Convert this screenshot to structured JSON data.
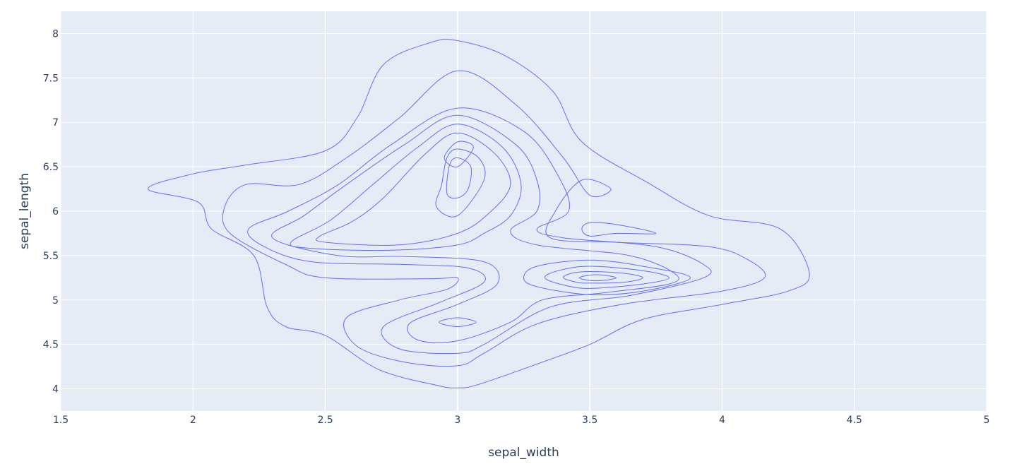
{
  "chart_data": {
    "type": "contour",
    "xlabel": "sepal_width",
    "ylabel": "sepal_length",
    "xlim": [
      1.5,
      5
    ],
    "ylim": [
      3.75,
      8.25
    ],
    "xticks": [
      1.5,
      2,
      2.5,
      3,
      3.5,
      4,
      4.5,
      5
    ],
    "xtick_labels": [
      "1.5",
      "2",
      "2.5",
      "3",
      "3.5",
      "4",
      "4.5",
      "5"
    ],
    "yticks": [
      4,
      4.5,
      5,
      5.5,
      6,
      6.5,
      7,
      7.5,
      8
    ],
    "ytick_labels": [
      "4",
      "4.5",
      "5",
      "5.5",
      "6",
      "6.5",
      "7",
      "7.5",
      "8"
    ],
    "grid": true,
    "plot_background": "#e5ecf6",
    "line_color": "#636efa",
    "series": [
      {
        "level": 1,
        "points": [
          [
            1.83,
            6.25
          ],
          [
            2.0,
            6.42
          ],
          [
            2.2,
            6.52
          ],
          [
            2.5,
            6.68
          ],
          [
            2.62,
            7.05
          ],
          [
            2.72,
            7.65
          ],
          [
            2.9,
            7.9
          ],
          [
            3.0,
            7.92
          ],
          [
            3.18,
            7.75
          ],
          [
            3.36,
            7.35
          ],
          [
            3.47,
            6.78
          ],
          [
            3.72,
            6.32
          ],
          [
            3.95,
            5.95
          ],
          [
            4.22,
            5.8
          ],
          [
            4.33,
            5.3
          ],
          [
            4.25,
            5.1
          ],
          [
            4.0,
            4.95
          ],
          [
            3.7,
            4.78
          ],
          [
            3.5,
            4.5
          ],
          [
            3.32,
            4.3
          ],
          [
            3.08,
            4.05
          ],
          [
            3.0,
            4.01
          ],
          [
            2.92,
            4.04
          ],
          [
            2.7,
            4.22
          ],
          [
            2.5,
            4.6
          ],
          [
            2.35,
            4.7
          ],
          [
            2.28,
            4.92
          ],
          [
            2.23,
            5.5
          ],
          [
            2.07,
            5.8
          ],
          [
            2.02,
            6.1
          ],
          [
            1.83,
            6.25
          ]
        ]
      },
      {
        "level": 2,
        "points": [
          [
            2.12,
            6.05
          ],
          [
            2.2,
            6.3
          ],
          [
            2.4,
            6.3
          ],
          [
            2.58,
            6.6
          ],
          [
            2.78,
            7.05
          ],
          [
            3.0,
            7.58
          ],
          [
            3.22,
            7.2
          ],
          [
            3.4,
            6.6
          ],
          [
            3.5,
            6.18
          ],
          [
            3.58,
            6.25
          ],
          [
            3.47,
            6.35
          ],
          [
            3.37,
            6.0
          ],
          [
            3.35,
            5.7
          ],
          [
            3.6,
            5.65
          ],
          [
            3.95,
            5.6
          ],
          [
            4.1,
            5.45
          ],
          [
            4.16,
            5.25
          ],
          [
            4.0,
            5.1
          ],
          [
            3.62,
            4.95
          ],
          [
            3.3,
            4.73
          ],
          [
            3.1,
            4.4
          ],
          [
            3.0,
            4.26
          ],
          [
            2.8,
            4.3
          ],
          [
            2.62,
            4.48
          ],
          [
            2.58,
            4.8
          ],
          [
            2.78,
            5.0
          ],
          [
            2.96,
            5.12
          ],
          [
            3.0,
            5.25
          ],
          [
            2.9,
            5.24
          ],
          [
            2.5,
            5.25
          ],
          [
            2.35,
            5.4
          ],
          [
            2.14,
            5.75
          ],
          [
            2.12,
            6.05
          ]
        ]
      },
      {
        "level": 3,
        "points": [
          [
            2.21,
            5.8
          ],
          [
            2.36,
            6.0
          ],
          [
            2.55,
            6.3
          ],
          [
            2.75,
            6.75
          ],
          [
            3.0,
            7.16
          ],
          [
            3.25,
            6.9
          ],
          [
            3.38,
            6.4
          ],
          [
            3.42,
            6.0
          ],
          [
            3.3,
            5.8
          ],
          [
            3.4,
            5.7
          ],
          [
            3.75,
            5.6
          ],
          [
            3.93,
            5.4
          ],
          [
            3.93,
            5.25
          ],
          [
            3.65,
            5.05
          ],
          [
            3.35,
            4.92
          ],
          [
            3.1,
            4.5
          ],
          [
            3.0,
            4.4
          ],
          [
            2.78,
            4.45
          ],
          [
            2.72,
            4.7
          ],
          [
            2.93,
            4.97
          ],
          [
            3.1,
            5.2
          ],
          [
            3.04,
            5.36
          ],
          [
            2.8,
            5.4
          ],
          [
            2.45,
            5.43
          ],
          [
            2.27,
            5.6
          ],
          [
            2.21,
            5.8
          ]
        ]
      },
      {
        "level": 4,
        "points": [
          [
            2.3,
            5.7
          ],
          [
            2.42,
            5.95
          ],
          [
            2.58,
            6.3
          ],
          [
            2.8,
            6.75
          ],
          [
            3.0,
            7.08
          ],
          [
            3.22,
            6.75
          ],
          [
            3.3,
            6.35
          ],
          [
            3.3,
            6.0
          ],
          [
            3.2,
            5.78
          ],
          [
            3.3,
            5.62
          ],
          [
            3.65,
            5.5
          ],
          [
            3.82,
            5.3
          ],
          [
            3.8,
            5.18
          ],
          [
            3.55,
            5.08
          ],
          [
            3.32,
            5.0
          ],
          [
            3.2,
            4.75
          ],
          [
            3.0,
            4.54
          ],
          [
            2.85,
            4.55
          ],
          [
            2.82,
            4.74
          ],
          [
            3.0,
            4.95
          ],
          [
            3.15,
            5.18
          ],
          [
            3.1,
            5.43
          ],
          [
            2.8,
            5.49
          ],
          [
            2.55,
            5.5
          ],
          [
            2.3,
            5.7
          ]
        ]
      },
      {
        "level": 5,
        "points": [
          [
            2.37,
            5.65
          ],
          [
            2.52,
            5.9
          ],
          [
            2.68,
            6.3
          ],
          [
            2.85,
            6.72
          ],
          [
            3.0,
            6.98
          ],
          [
            3.17,
            6.72
          ],
          [
            3.24,
            6.3
          ],
          [
            3.2,
            5.95
          ],
          [
            3.1,
            5.75
          ],
          [
            3.0,
            5.62
          ],
          [
            2.75,
            5.56
          ],
          [
            2.45,
            5.58
          ],
          [
            2.37,
            5.65
          ]
        ]
      },
      {
        "level": 6,
        "points": [
          [
            2.48,
            5.72
          ],
          [
            2.6,
            5.88
          ],
          [
            2.72,
            6.15
          ],
          [
            2.88,
            6.65
          ],
          [
            3.0,
            6.88
          ],
          [
            3.14,
            6.65
          ],
          [
            3.2,
            6.3
          ],
          [
            3.12,
            5.98
          ],
          [
            3.0,
            5.75
          ],
          [
            2.78,
            5.62
          ],
          [
            2.5,
            5.65
          ],
          [
            2.48,
            5.72
          ]
        ]
      },
      {
        "level": 7,
        "points": [
          [
            2.94,
            6.3
          ],
          [
            2.96,
            6.6
          ],
          [
            3.0,
            6.7
          ],
          [
            3.08,
            6.6
          ],
          [
            3.1,
            6.35
          ],
          [
            3.0,
            5.95
          ],
          [
            2.92,
            6.05
          ],
          [
            2.94,
            6.3
          ]
        ]
      },
      {
        "level": 8,
        "points": [
          [
            2.96,
            6.2
          ],
          [
            2.97,
            6.52
          ],
          [
            3.0,
            6.6
          ],
          [
            3.05,
            6.5
          ],
          [
            3.04,
            6.25
          ],
          [
            3.0,
            6.15
          ],
          [
            2.96,
            6.2
          ]
        ]
      },
      {
        "level": 9,
        "points": [
          [
            2.95,
            6.6
          ],
          [
            3.0,
            6.78
          ],
          [
            3.06,
            6.72
          ],
          [
            3.0,
            6.5
          ],
          [
            2.95,
            6.6
          ]
        ]
      },
      {
        "level": 10,
        "points": [
          [
            3.5,
            5.72
          ],
          [
            3.6,
            5.75
          ],
          [
            3.75,
            5.75
          ],
          [
            3.6,
            5.85
          ],
          [
            3.5,
            5.87
          ],
          [
            3.47,
            5.8
          ],
          [
            3.5,
            5.72
          ]
        ]
      },
      {
        "level": 11,
        "points": [
          [
            3.25,
            5.25
          ],
          [
            3.3,
            5.15
          ],
          [
            3.5,
            5.06
          ],
          [
            3.7,
            5.1
          ],
          [
            3.88,
            5.25
          ],
          [
            3.7,
            5.38
          ],
          [
            3.5,
            5.45
          ],
          [
            3.3,
            5.38
          ],
          [
            3.25,
            5.25
          ]
        ]
      },
      {
        "level": 12,
        "points": [
          [
            3.33,
            5.25
          ],
          [
            3.4,
            5.17
          ],
          [
            3.5,
            5.13
          ],
          [
            3.7,
            5.18
          ],
          [
            3.8,
            5.25
          ],
          [
            3.7,
            5.33
          ],
          [
            3.5,
            5.38
          ],
          [
            3.38,
            5.33
          ],
          [
            3.33,
            5.25
          ]
        ]
      },
      {
        "level": 13,
        "points": [
          [
            3.4,
            5.25
          ],
          [
            3.45,
            5.2
          ],
          [
            3.5,
            5.19
          ],
          [
            3.63,
            5.2
          ],
          [
            3.7,
            5.25
          ],
          [
            3.63,
            5.3
          ],
          [
            3.5,
            5.32
          ],
          [
            3.43,
            5.3
          ],
          [
            3.4,
            5.25
          ]
        ]
      },
      {
        "level": 14,
        "points": [
          [
            3.46,
            5.25
          ],
          [
            3.5,
            5.22
          ],
          [
            3.55,
            5.22
          ],
          [
            3.6,
            5.25
          ],
          [
            3.55,
            5.28
          ],
          [
            3.5,
            5.28
          ],
          [
            3.46,
            5.25
          ]
        ]
      },
      {
        "level": 15,
        "points": [
          [
            2.93,
            4.75
          ],
          [
            3.0,
            4.7
          ],
          [
            3.07,
            4.75
          ],
          [
            3.0,
            4.8
          ],
          [
            2.93,
            4.75
          ]
        ]
      }
    ]
  }
}
